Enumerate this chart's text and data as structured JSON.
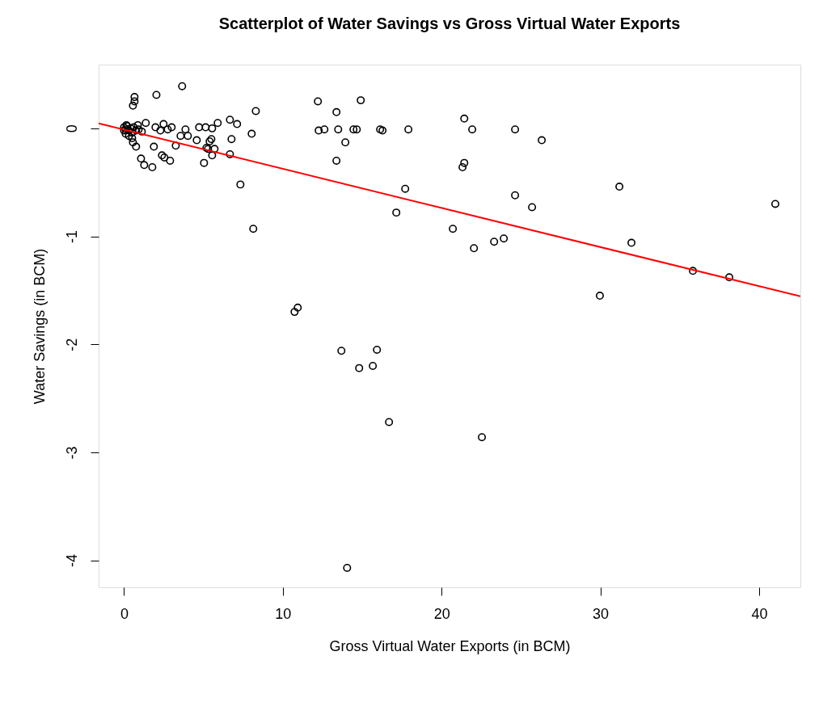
{
  "chart_data": {
    "type": "scatter",
    "title": "Scatterplot of Water Savings vs Gross Virtual Water Exports",
    "xlabel": "Gross Virtual Water Exports (in BCM)",
    "ylabel": "Water Savings (in BCM)",
    "xlim": [
      -1.6,
      42.6
    ],
    "ylim": [
      -4.25,
      0.59
    ],
    "xticks": [
      0,
      10,
      20,
      30,
      40
    ],
    "yticks": [
      -4,
      -3,
      -2,
      -1,
      0
    ],
    "grid": false,
    "series": [
      {
        "marker": "circle",
        "color": "#000000",
        "x": [
          3.66,
          2.04,
          0.66,
          0.66,
          0.56,
          8.3,
          12.21,
          14.91,
          13.38,
          12.26,
          12.62,
          13.49,
          14.45,
          14.66,
          16.13,
          16.28,
          17.91,
          13.94,
          13.38,
          7.33,
          17.71,
          17.15,
          20.71,
          8.14,
          6.77,
          6.67,
          8.04,
          6.67,
          7.12,
          5.9,
          5.04,
          5.55,
          5.5,
          5.39,
          5.19,
          5.29,
          5.7,
          4.73,
          5.14,
          5.55,
          4.58,
          4.02,
          3.87,
          3.56,
          3.26,
          3.0,
          2.75,
          2.49,
          2.29,
          2.9,
          2.54,
          2.39,
          1.88,
          1.78,
          1.27,
          1.07,
          0.76,
          0.56,
          1.98,
          1.37,
          1.12,
          0.0,
          0.1,
          0.2,
          0.31,
          0.41,
          0.51,
          0.61,
          0.76,
          0.92,
          0.1,
          0.31,
          0.51,
          0.0,
          0.15,
          0.87,
          21.43,
          21.93,
          24.63,
          26.31,
          21.43,
          21.32,
          31.2,
          41.02,
          24.63,
          25.7,
          22.04,
          23.31,
          23.92,
          31.96,
          35.83,
          38.12,
          29.97,
          10.94,
          10.74,
          13.69,
          15.93,
          14.81,
          15.67,
          16.69,
          22.54,
          14.05
        ],
        "values": [
          0.39,
          0.31,
          0.29,
          0.25,
          0.21,
          0.16,
          0.25,
          0.26,
          0.15,
          -0.02,
          -0.01,
          -0.01,
          -0.01,
          -0.01,
          -0.01,
          -0.02,
          -0.01,
          -0.13,
          -0.3,
          -0.52,
          -0.56,
          -0.78,
          -0.93,
          -0.93,
          -0.1,
          -0.24,
          -0.05,
          0.08,
          0.04,
          0.05,
          -0.32,
          -0.25,
          -0.1,
          -0.12,
          -0.18,
          -0.19,
          -0.19,
          0.01,
          0.01,
          0.0,
          -0.11,
          -0.07,
          -0.01,
          -0.07,
          -0.16,
          0.01,
          -0.01,
          0.04,
          -0.02,
          -0.3,
          -0.27,
          -0.25,
          -0.17,
          -0.36,
          -0.34,
          -0.28,
          -0.17,
          -0.13,
          0.01,
          0.05,
          -0.03,
          0.01,
          -0.01,
          0.02,
          -0.02,
          0.0,
          -0.04,
          0.01,
          -0.02,
          -0.01,
          -0.05,
          -0.07,
          -0.09,
          -0.02,
          0.03,
          0.03,
          0.09,
          -0.01,
          -0.01,
          -0.11,
          -0.32,
          -0.36,
          -0.54,
          -0.7,
          -0.62,
          -0.73,
          -1.11,
          -1.05,
          -1.02,
          -1.06,
          -1.32,
          -1.38,
          -1.55,
          -1.66,
          -1.7,
          -2.06,
          -2.05,
          -2.22,
          -2.2,
          -2.72,
          -2.86,
          -4.07
        ]
      },
      {
        "type": "line",
        "color": "#ff0000",
        "x": [
          -1.6,
          42.6
        ],
        "values": [
          0.046,
          -1.556
        ]
      }
    ]
  }
}
